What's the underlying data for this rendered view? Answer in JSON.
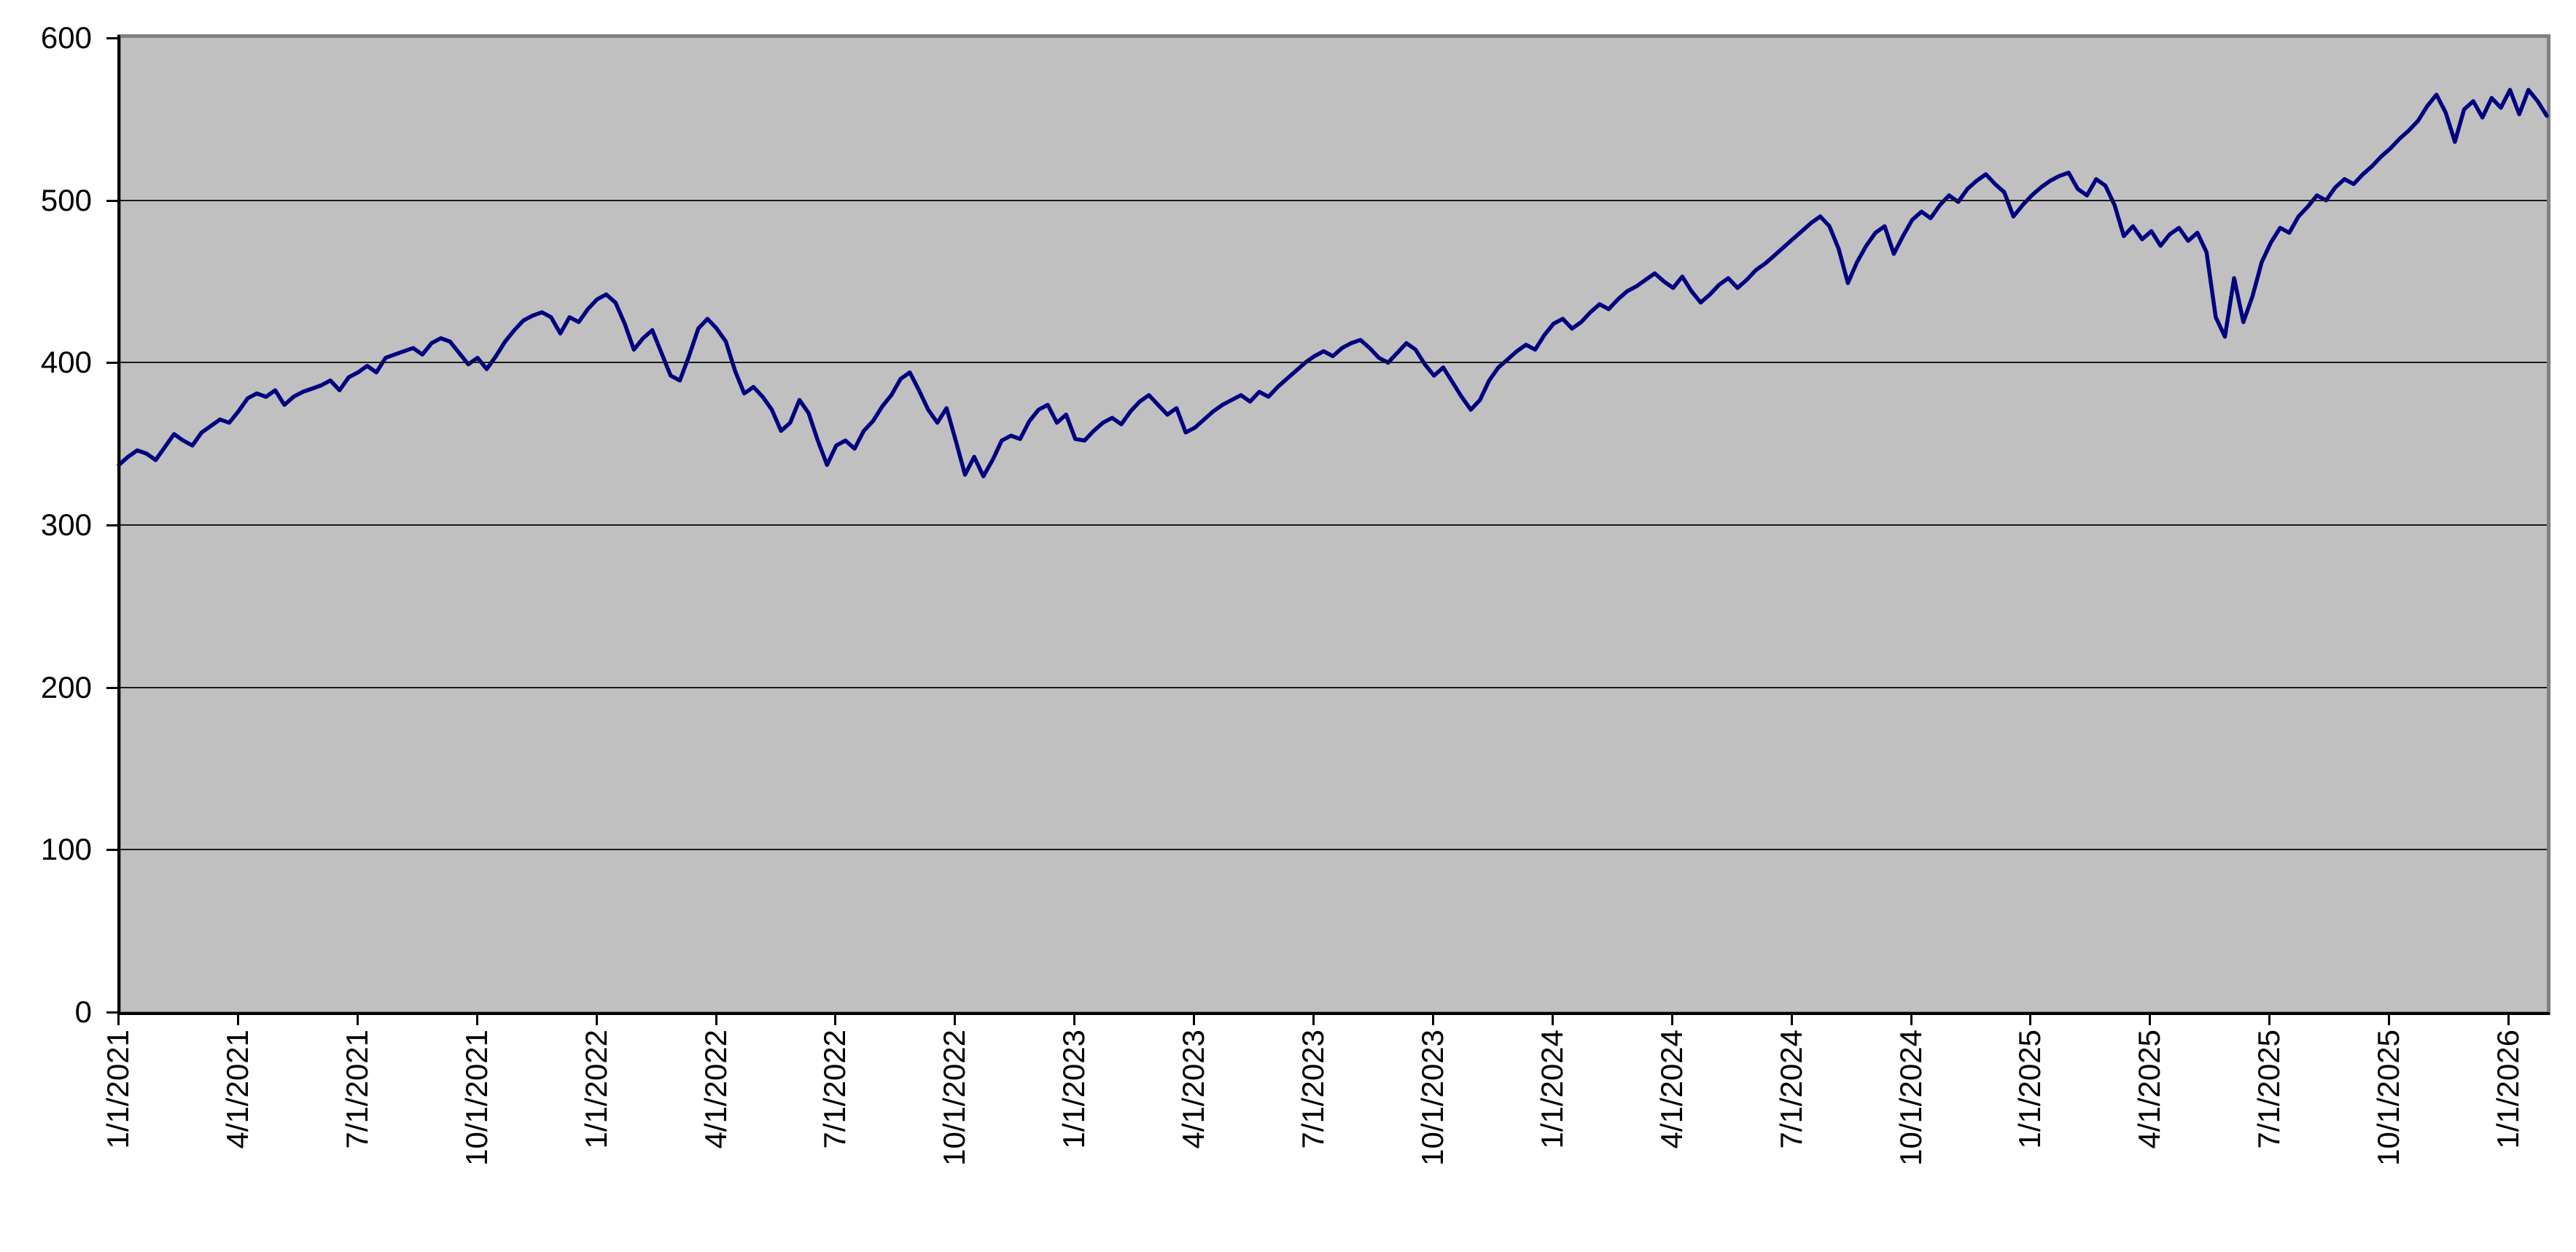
{
  "chart_data": {
    "type": "line",
    "title": "",
    "description": "Daily index/ETF price line chart (Excel-style, gray plot area, navy series), Jan 2021 through end of plotted range",
    "x_tick_labels": [
      "1/1/2021",
      "4/1/2021",
      "7/1/2021",
      "10/1/2021",
      "1/1/2022",
      "4/1/2022",
      "7/1/2022",
      "10/1/2022",
      "1/1/2023",
      "4/1/2023",
      "7/1/2023",
      "10/1/2023",
      "1/1/2024",
      "4/1/2024",
      "7/1/2024",
      "10/1/2024",
      "1/1/2025",
      "4/1/2025",
      "7/1/2025",
      "10/1/2025",
      "1/1/2026"
    ],
    "y_tick_labels": [
      "0",
      "100",
      "200",
      "300",
      "400",
      "500",
      "600"
    ],
    "y_ticks": [
      0,
      100,
      200,
      300,
      400,
      500,
      600
    ],
    "ylim": [
      0,
      600
    ],
    "grid_values": [
      100,
      200,
      300,
      400,
      500
    ],
    "legend": "none",
    "x_start_date": "1/1/2021",
    "sample_interval_days": 7,
    "colors": {
      "line": "#000080",
      "plot_background": "#c0c0c0",
      "plot_border": "#808080",
      "axis": "#000000",
      "gridline": "#1a1a1a",
      "page_background": "#ffffff",
      "label_text": "#000000"
    },
    "values": [
      337,
      342,
      346,
      344,
      340,
      348,
      356,
      352,
      349,
      357,
      361,
      365,
      363,
      370,
      378,
      381,
      379,
      383,
      374,
      379,
      382,
      384,
      386,
      389,
      383,
      391,
      394,
      398,
      394,
      403,
      405,
      407,
      409,
      405,
      412,
      415,
      413,
      406,
      399,
      403,
      396,
      404,
      413,
      420,
      426,
      429,
      431,
      428,
      418,
      428,
      425,
      433,
      439,
      442,
      437,
      424,
      408,
      415,
      420,
      406,
      392,
      389,
      404,
      421,
      427,
      421,
      413,
      395,
      381,
      385,
      379,
      371,
      358,
      363,
      377,
      369,
      352,
      337,
      349,
      352,
      347,
      358,
      364,
      373,
      380,
      390,
      394,
      383,
      371,
      363,
      372,
      352,
      331,
      342,
      330,
      340,
      352,
      355,
      353,
      364,
      371,
      374,
      363,
      368,
      353,
      352,
      358,
      363,
      366,
      362,
      370,
      376,
      380,
      374,
      368,
      372,
      357,
      360,
      365,
      370,
      374,
      377,
      380,
      376,
      382,
      379,
      385,
      390,
      395,
      400,
      404,
      407,
      404,
      409,
      412,
      414,
      409,
      403,
      400,
      406,
      412,
      408,
      399,
      392,
      397,
      388,
      379,
      371,
      377,
      389,
      397,
      402,
      407,
      411,
      408,
      417,
      424,
      427,
      421,
      425,
      431,
      436,
      433,
      439,
      444,
      447,
      451,
      455,
      450,
      446,
      453,
      444,
      437,
      442,
      448,
      452,
      446,
      451,
      457,
      461,
      466,
      471,
      476,
      481,
      486,
      490,
      484,
      470,
      449,
      462,
      472,
      480,
      484,
      467,
      478,
      488,
      493,
      489,
      497,
      503,
      499,
      507,
      512,
      516,
      510,
      505,
      490,
      497,
      503,
      508,
      512,
      515,
      517,
      507,
      503,
      513,
      509,
      497,
      478,
      484,
      476,
      481,
      472,
      479,
      483,
      475,
      480,
      468,
      428,
      416,
      452,
      425,
      441,
      462,
      474,
      483,
      480,
      490,
      496,
      503,
      500,
      508,
      513,
      510,
      516,
      521,
      527,
      532,
      538,
      543,
      549,
      558,
      565,
      554,
      536,
      556,
      561,
      551,
      563,
      557,
      568,
      553,
      568,
      561,
      552
    ]
  }
}
